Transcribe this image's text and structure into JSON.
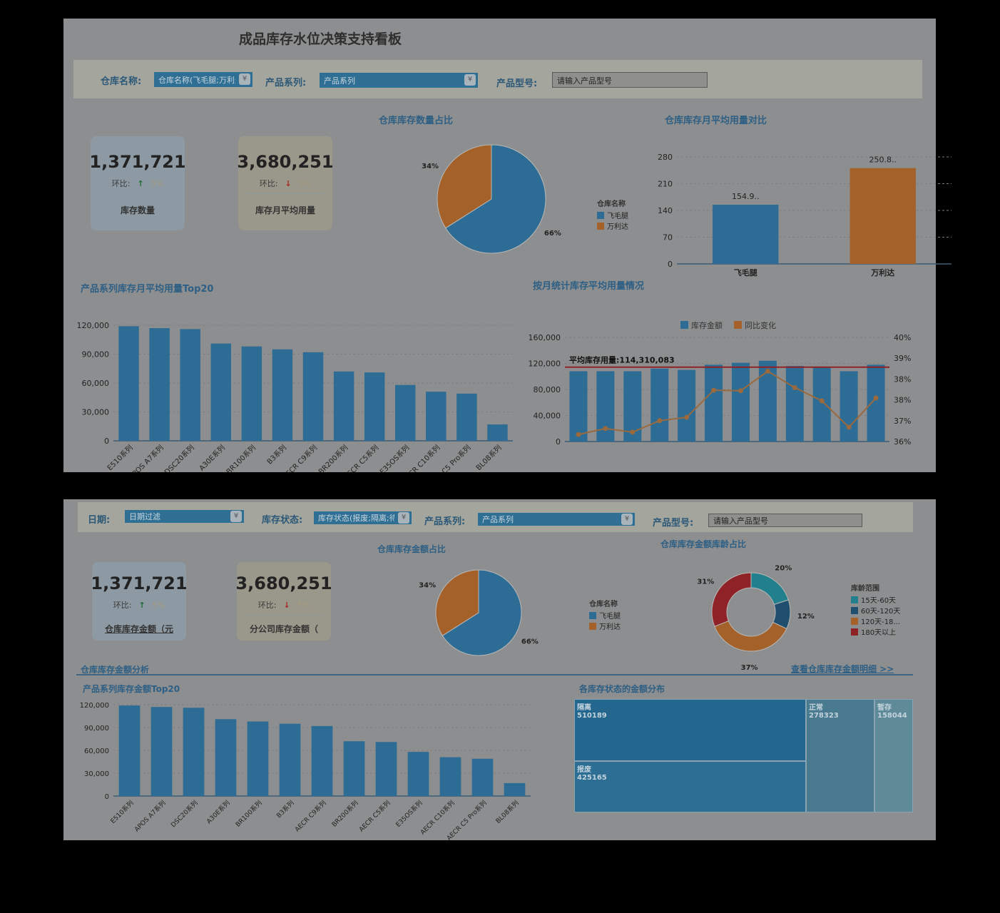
{
  "colors": {
    "blue": "#2d6c94",
    "orange": "#a4612a",
    "red": "#8e2227",
    "teal": "#22808c",
    "navy": "#204e6e",
    "grid": "#7e7f80"
  },
  "p1": {
    "title": "成品库存水位决策支持看板",
    "filters": {
      "warehouse_label": "仓库名称:",
      "warehouse_value": "仓库名称(飞毛腿;万利达)",
      "series_label": "产品系列:",
      "series_value": "产品系列",
      "model_label": "产品型号:",
      "model_placeholder": "请输入产品型号"
    },
    "kpis": [
      {
        "value": "1,371,721",
        "mom_label": "环比:",
        "arrow": "↑",
        "pct": "5%",
        "label": "库存数量"
      },
      {
        "value": "3,680,251",
        "mom_label": "环比:",
        "arrow": "↓",
        "pct": "5%",
        "label": "库存月平均用量"
      }
    ],
    "pie_title": "仓库库存数量占比",
    "bar_title": "仓库库存月平均用量对比",
    "top20_title": "产品系列库存月平均用量Top20",
    "monthly_title": "按月统计库存平均用量情况",
    "avg_line_label": "平均库存用量:114,310,083"
  },
  "p2": {
    "filters": {
      "date_label": "日期:",
      "date_value": "日期过滤",
      "status_label": "库存状态:",
      "status_value": "库存状态(报废;隔离;待",
      "series_label": "产品系列:",
      "series_value": "产品系列",
      "model_label": "产品型号:",
      "model_placeholder": "请输入产品型号"
    },
    "kpis": [
      {
        "value": "1,371,721",
        "mom_label": "环比:",
        "arrow": "↑",
        "pct": "5%",
        "label": "仓库库存金额（元"
      },
      {
        "value": "3,680,251",
        "mom_label": "环比:",
        "arrow": "↓",
        "pct": "5%",
        "label": "分公司库存金额（"
      }
    ],
    "pie_title": "仓库库存金额占比",
    "donut_title": "仓库库存金额库龄占比",
    "section_title": "仓库库存金额分析",
    "detail_link": "查看仓库库存金额明细 >>",
    "top20_title": "产品系列库存金额Top20",
    "treemap_title": "各库存状态的金额分布"
  },
  "chart_data": [
    {
      "id": "p1pie",
      "type": "pie",
      "title": "仓库库存数量占比",
      "legend_title": "仓库名称",
      "categories": [
        "飞毛腿",
        "万利达"
      ],
      "values": [
        66,
        34
      ],
      "labels": [
        "66%",
        "34%"
      ]
    },
    {
      "id": "p1bar",
      "type": "bar",
      "title": "仓库库存月平均用量对比",
      "categories": [
        "飞毛腿",
        "万利达"
      ],
      "values": [
        154.9,
        250.8
      ],
      "data_labels": [
        "154.9..",
        "250.8.."
      ],
      "ylim": [
        0,
        280
      ],
      "yticks": [
        "0",
        "70",
        "140",
        "210",
        "280"
      ]
    },
    {
      "id": "p1top",
      "type": "bar",
      "title": "产品系列库存月平均用量Top20",
      "categories": [
        "E510系列",
        "APOS A7系列",
        "DSC20系列",
        "A30E系列",
        "BR100系列",
        "B3系列",
        "AECR C9系列",
        "BR200系列",
        "AECR C5系列",
        "E35OS系列",
        "AECR C10系列",
        "AECR C5 Pro系列",
        "BL08系列"
      ],
      "values": [
        119000,
        117000,
        116000,
        101000,
        98000,
        95000,
        92000,
        72000,
        71000,
        58000,
        51000,
        49000,
        17000
      ],
      "ylim": [
        0,
        120000
      ],
      "yticks": [
        "0",
        "30,000",
        "60,000",
        "90,000",
        "120,000"
      ]
    },
    {
      "id": "p1month",
      "type": "bar+line",
      "title": "按月统计库存平均用量情况",
      "legend": [
        "库存金额",
        "同比变化"
      ],
      "bars": [
        108000,
        108000,
        108000,
        112000,
        110000,
        118000,
        121000,
        124000,
        116000,
        115000,
        108000,
        118000
      ],
      "line": [
        36.27,
        36.5,
        36.36,
        36.8,
        36.93,
        37.97,
        37.95,
        38.7,
        38.07,
        37.56,
        36.55,
        37.67
      ],
      "ylim": [
        0,
        160000
      ],
      "yticks": [
        "0",
        "40,000",
        "80,000",
        "120,000",
        "160,000"
      ],
      "y2lim": [
        36,
        40
      ],
      "y2ticks": [
        "36%",
        "37%",
        "38%",
        "38%",
        "39%",
        "40%"
      ],
      "avg_line": 114310
    },
    {
      "id": "p2pie",
      "type": "pie",
      "title": "仓库库存金额占比",
      "legend_title": "仓库名称",
      "categories": [
        "飞毛腿",
        "万利达"
      ],
      "values": [
        66,
        34
      ],
      "labels": [
        "66%",
        "34%"
      ]
    },
    {
      "id": "p2donut",
      "type": "pie",
      "title": "仓库库存金额库龄占比",
      "legend_title": "库龄范围",
      "categories": [
        "15天-60天",
        "60天-120天",
        "120天-18...",
        "180天以上"
      ],
      "values": [
        20,
        12,
        37,
        31
      ],
      "labels": [
        "20%",
        "12%",
        "37%",
        "31%"
      ]
    },
    {
      "id": "p2top",
      "type": "bar",
      "title": "产品系列库存金额Top20",
      "categories": [
        "E510系列",
        "APOS A7系列",
        "DSC20系列",
        "A30E系列",
        "BR100系列",
        "B3系列",
        "AECR C9系列",
        "BR200系列",
        "AECR C5系列",
        "E35OS系列",
        "AECR C10系列",
        "AECR C5 Pro系列",
        "BL08系列"
      ],
      "values": [
        119000,
        117000,
        116000,
        101000,
        98000,
        95000,
        92000,
        72000,
        71000,
        58000,
        51000,
        49000,
        17000
      ],
      "ylim": [
        0,
        120000
      ],
      "yticks": [
        "0",
        "30,000",
        "60,000",
        "90,000",
        "120,000"
      ]
    },
    {
      "id": "p2tree",
      "type": "treemap",
      "title": "各库存状态的金额分布",
      "items": [
        {
          "name": "隔离",
          "value": 510189
        },
        {
          "name": "报废",
          "value": 425165
        },
        {
          "name": "正常",
          "value": 278323
        },
        {
          "name": "暂存",
          "value": 158044
        }
      ]
    }
  ]
}
